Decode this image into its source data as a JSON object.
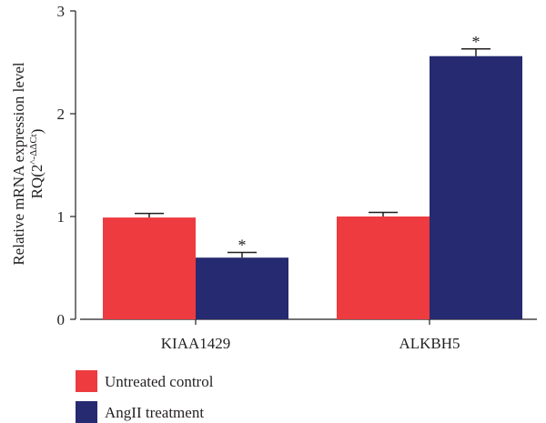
{
  "chart_data": {
    "type": "bar",
    "categories": [
      "KIAA1429",
      "ALKBH5"
    ],
    "series": [
      {
        "name": "Untreated control",
        "values": [
          0.99,
          1.0
        ],
        "errors": [
          0.04,
          0.04
        ],
        "color": "#ed3b3f",
        "significance": [
          "",
          ""
        ]
      },
      {
        "name": "AngII treatment",
        "values": [
          0.6,
          2.56
        ],
        "errors": [
          0.05,
          0.07
        ],
        "color": "#262a70",
        "significance": [
          "*",
          "*"
        ]
      }
    ],
    "ylim": [
      0,
      3
    ],
    "yticks": [
      "0",
      "1",
      "2",
      "3"
    ],
    "ylabel_line1": "Relative mRNA expression level",
    "ylabel_line2_prefix": "RQ(2",
    "ylabel_line2_sup": "^-ΔΔCt",
    "ylabel_line2_suffix": ")",
    "legend_position": "bottom-left",
    "grid": false
  }
}
